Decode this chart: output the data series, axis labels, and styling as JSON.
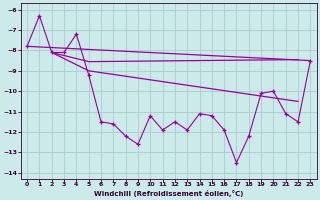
{
  "xlabel": "Windchill (Refroidissement éolien,°C)",
  "bg_color": "#cdeaea",
  "grid_color": "#aacccc",
  "line_color": "#990099",
  "xlim": [
    -0.5,
    23.5
  ],
  "ylim": [
    -14.3,
    -5.7
  ],
  "xticks": [
    0,
    1,
    2,
    3,
    4,
    5,
    6,
    7,
    8,
    9,
    10,
    11,
    12,
    13,
    14,
    15,
    16,
    17,
    18,
    19,
    20,
    21,
    22,
    23
  ],
  "yticks": [
    -14,
    -13,
    -12,
    -11,
    -10,
    -9,
    -8,
    -7,
    -6
  ],
  "line1_x": [
    0,
    1,
    2,
    3,
    4,
    5,
    6,
    7,
    8,
    9,
    10,
    11,
    12,
    13,
    14,
    15,
    16,
    17,
    18,
    19,
    20,
    21,
    22,
    23
  ],
  "line1_y": [
    -7.8,
    -6.3,
    -8.1,
    -8.1,
    -7.2,
    -9.2,
    -11.5,
    -11.6,
    -12.2,
    -12.6,
    -11.2,
    -11.9,
    -11.5,
    -11.9,
    -11.1,
    -11.2,
    -11.9,
    -13.5,
    -12.2,
    -10.1,
    -10.0,
    -11.1,
    -11.5,
    -8.5
  ],
  "line2_x": [
    0,
    23
  ],
  "line2_y": [
    -7.8,
    -8.5
  ],
  "line3_x": [
    2,
    5,
    22
  ],
  "line3_y": [
    -8.1,
    -8.55,
    -8.45
  ],
  "line4_x": [
    2,
    5,
    22
  ],
  "line4_y": [
    -8.1,
    -9.0,
    -10.5
  ]
}
